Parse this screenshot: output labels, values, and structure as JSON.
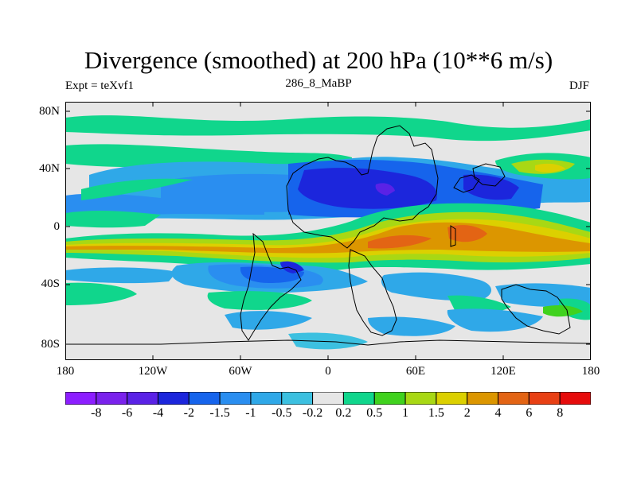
{
  "title": "Divergence (smoothed) at 200 hPa (10**6 m/s)",
  "left_label": "Expt = teXvf1",
  "center_label": "286_8_MaBP",
  "right_label": "DJF",
  "y_ticks": [
    "80N",
    "40N",
    "0",
    "40S",
    "80S"
  ],
  "x_ticks": [
    "180",
    "120W",
    "60W",
    "0",
    "60E",
    "120E",
    "180"
  ],
  "colorbar": {
    "labels": [
      "-8",
      "-6",
      "-4",
      "-2",
      "-1.5",
      "-1",
      "-0.5",
      "-0.2",
      "0.2",
      "0.5",
      "1",
      "1.5",
      "2",
      "4",
      "6",
      "8"
    ],
    "colors": [
      "#8c1eff",
      "#7a22ec",
      "#5a22e6",
      "#1c26dc",
      "#1664ec",
      "#2a8ef0",
      "#2fa8e8",
      "#3cc0e0",
      "#e6e6e6",
      "#10d68c",
      "#40d21e",
      "#a8d814",
      "#dcd000",
      "#dc9600",
      "#e36414",
      "#e84014",
      "#e60c0c"
    ]
  },
  "map": {
    "background": "#e6e6e6",
    "border": "#000000"
  }
}
